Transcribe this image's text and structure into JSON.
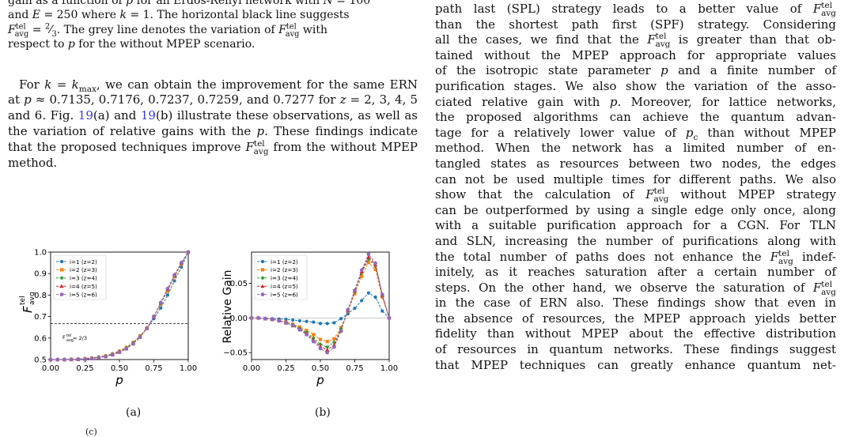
{
  "left_column": {
    "caption_tail": [
      "gain as a function of p for an Erdős-Rényi network with N = 100",
      "and E = 250 where k = 1. The horizontal black line suggests",
      "F_avg^tel = 2/3. The grey line denotes the variation of F_avg^tel with",
      "respect to p for the without MPEP scenario."
    ],
    "paragraph": "For k = k_max, we can obtain the improvement for the same ERN at p ≈ 0.7135, 0.7176, 0.7237, 0.7259, and 0.7277 for z = 2, 3, 4, 5 and 6. Fig. 19(a) and 19(b) illustrate these observations, as well as the variation of relative gains with the p. These findings indicate that the proposed techniques improve F_avg^tel from the without MPEP method."
  },
  "right_column": {
    "lines": [
      "path last (SPL) strategy leads to a better value of F_avg^tel",
      "than the shortest path first (SPF) strategy. Considering",
      "all the cases, we find that the F_avg^tel is greater than that ob-",
      "tained without the MPEP approach for appropriate values",
      "of the isotropic state parameter p and a finite number of",
      "purification stages. We also show the variation of the asso-",
      "ciated relative gain with p. Moreover, for lattice networks,",
      "the proposed algorithms can achieve the quantum advan-",
      "tage for a relatively lower value of p_c than without MPEP",
      "method. When the network has a limited number of en-",
      "tangled states as resources between two nodes, the edges",
      "can not be used multiple times for different paths. We also",
      "show that the calculation of F_avg^tel without MPEP strategy",
      "can be outperformed by using a single edge only once, along",
      "with a suitable purification approach for a CGN. For TLN",
      "and SLN, increasing the number of purifications along with",
      "the total number of paths does not enhance the F_avg^tel indef-",
      "initely, as it reaches saturation after a certain number of",
      "steps. On the other hand, we observe the saturation of F_avg^tel",
      "in the case of ERN also. These findings show that even in",
      "the absence of resources, the MPEP approach yields better",
      "fidelity than without MPEP about the effective distribution",
      "of resources in quantum networks. These findings suggest",
      "that MPEP techniques can greatly enhance quantum net-"
    ]
  },
  "colors": {
    "series": [
      "#1f77b4",
      "#ff7f0e",
      "#2ca02c",
      "#d62728",
      "#9467bd"
    ],
    "link": "#3a3ae0"
  },
  "figure": {
    "sublabels": [
      "(a)",
      "(b)"
    ],
    "corner_mark": "(c)"
  },
  "chart_data": [
    {
      "type": "line",
      "panel": "(a)",
      "xlabel": "p",
      "ylabel": "F_avg^tel",
      "xlim": [
        0.0,
        1.0
      ],
      "ylim": [
        0.5,
        1.0
      ],
      "xticks": [
        "0.00",
        "0.25",
        "0.50",
        "0.75",
        "1.00"
      ],
      "yticks": [
        "0.5",
        "0.6",
        "0.7",
        "0.8",
        "0.9",
        "1.0"
      ],
      "hline": {
        "y": 0.6667,
        "label": "F_avg^tel = 2/3"
      },
      "x": [
        0.0,
        0.05,
        0.1,
        0.15,
        0.2,
        0.25,
        0.3,
        0.35,
        0.4,
        0.45,
        0.5,
        0.55,
        0.6,
        0.65,
        0.7,
        0.75,
        0.8,
        0.85,
        0.9,
        0.95,
        1.0
      ],
      "series": [
        {
          "name": "i=1 (z=2)",
          "values": [
            0.5,
            0.5,
            0.501,
            0.501,
            0.503,
            0.505,
            0.508,
            0.512,
            0.518,
            0.527,
            0.54,
            0.557,
            0.58,
            0.61,
            0.646,
            0.69,
            0.74,
            0.8,
            0.866,
            0.93,
            1.0
          ]
        },
        {
          "name": "i=2 (z=3)",
          "values": [
            0.5,
            0.5,
            0.5,
            0.501,
            0.502,
            0.504,
            0.507,
            0.511,
            0.517,
            0.526,
            0.538,
            0.556,
            0.579,
            0.61,
            0.648,
            0.7,
            0.758,
            0.82,
            0.885,
            0.945,
            1.0
          ]
        },
        {
          "name": "i=3 (z=4)",
          "values": [
            0.5,
            0.5,
            0.5,
            0.501,
            0.502,
            0.503,
            0.506,
            0.51,
            0.516,
            0.524,
            0.536,
            0.553,
            0.576,
            0.607,
            0.647,
            0.7,
            0.762,
            0.825,
            0.89,
            0.948,
            1.0
          ]
        },
        {
          "name": "i=4 (z=5)",
          "values": [
            0.5,
            0.5,
            0.5,
            0.5,
            0.501,
            0.503,
            0.505,
            0.509,
            0.515,
            0.523,
            0.535,
            0.551,
            0.574,
            0.605,
            0.646,
            0.7,
            0.764,
            0.828,
            0.892,
            0.95,
            1.0
          ]
        },
        {
          "name": "i=5 (z=6)",
          "values": [
            0.5,
            0.5,
            0.5,
            0.5,
            0.501,
            0.502,
            0.505,
            0.509,
            0.514,
            0.522,
            0.534,
            0.55,
            0.573,
            0.604,
            0.645,
            0.7,
            0.765,
            0.83,
            0.894,
            0.951,
            1.0
          ]
        }
      ],
      "legend": "top-left"
    },
    {
      "type": "line",
      "panel": "(b)",
      "xlabel": "p",
      "ylabel": "Relative Gain",
      "xlim": [
        0.0,
        1.0
      ],
      "ylim": [
        -0.06,
        0.095
      ],
      "xticks": [
        "0.00",
        "0.25",
        "0.50",
        "0.75",
        "1.00"
      ],
      "yticks": [
        "-0.05",
        "0.00",
        "0.05"
      ],
      "x": [
        0.0,
        0.05,
        0.1,
        0.15,
        0.2,
        0.25,
        0.3,
        0.35,
        0.4,
        0.45,
        0.5,
        0.55,
        0.6,
        0.65,
        0.7,
        0.75,
        0.8,
        0.85,
        0.9,
        0.95,
        1.0
      ],
      "series": [
        {
          "name": "i=1 (z=2)",
          "values": [
            0.0,
            0.0,
            -0.0005,
            -0.001,
            -0.0015,
            -0.002,
            -0.003,
            -0.004,
            -0.005,
            -0.006,
            -0.008,
            -0.008,
            -0.007,
            -0.001,
            0.006,
            0.014,
            0.025,
            0.036,
            0.03,
            0.01,
            0.0
          ]
        },
        {
          "name": "i=2 (z=3)",
          "values": [
            0.0,
            0.0,
            -0.001,
            -0.002,
            -0.004,
            -0.006,
            -0.009,
            -0.013,
            -0.018,
            -0.024,
            -0.031,
            -0.034,
            -0.03,
            -0.014,
            0.01,
            0.035,
            0.06,
            0.08,
            0.07,
            0.03,
            0.0
          ]
        },
        {
          "name": "i=3 (z=4)",
          "values": [
            0.0,
            0.0,
            -0.001,
            -0.002,
            -0.004,
            -0.007,
            -0.01,
            -0.015,
            -0.021,
            -0.029,
            -0.038,
            -0.042,
            -0.035,
            -0.016,
            0.011,
            0.038,
            0.065,
            0.085,
            0.075,
            0.032,
            0.0
          ]
        },
        {
          "name": "i=4 (z=5)",
          "values": [
            0.0,
            0.0,
            -0.001,
            -0.002,
            -0.004,
            -0.007,
            -0.011,
            -0.016,
            -0.023,
            -0.032,
            -0.041,
            -0.046,
            -0.039,
            -0.018,
            0.011,
            0.039,
            0.067,
            0.088,
            0.077,
            0.033,
            0.0
          ]
        },
        {
          "name": "i=5 (z=6)",
          "values": [
            0.0,
            0.0,
            -0.001,
            -0.002,
            -0.004,
            -0.007,
            -0.011,
            -0.017,
            -0.024,
            -0.034,
            -0.044,
            -0.05,
            -0.042,
            -0.019,
            0.012,
            0.04,
            0.069,
            0.092,
            0.079,
            0.034,
            0.0
          ]
        }
      ],
      "legend": "top-left"
    }
  ]
}
